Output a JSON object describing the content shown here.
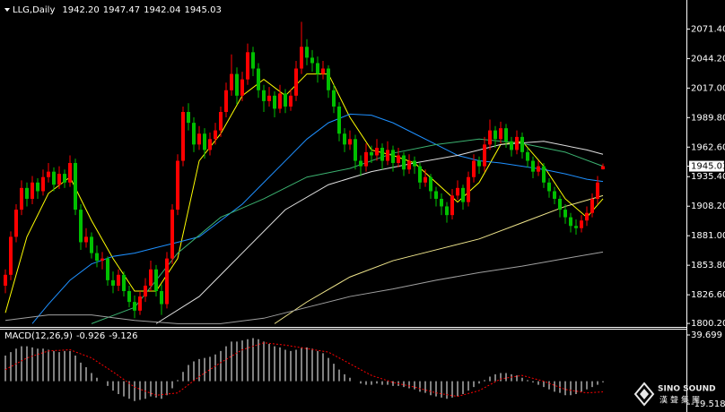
{
  "header": {
    "symbol": "LLG,Daily",
    "ohlc": [
      "1942.20",
      "1947.47",
      "1942.04",
      "1945.03"
    ]
  },
  "watermark": {
    "brand": "SINO SOUND",
    "chinese": "漢聲集團"
  },
  "chart_data": [
    {
      "type": "candlestick",
      "up_color": "#ff0000",
      "down_color": "#00c000",
      "ylim": [
        1797,
        2094
      ],
      "yticks": [
        {
          "value": 2071.4,
          "label": "2071.40"
        },
        {
          "value": 2044.2,
          "label": "2044.20"
        },
        {
          "value": 2017,
          "label": "2017.00"
        },
        {
          "value": 1989.8,
          "label": "1989.80"
        },
        {
          "value": 1962.6,
          "label": "1962.60"
        },
        {
          "value": 1935.4,
          "label": "1935.40"
        },
        {
          "value": 1908.2,
          "label": "1908.20"
        },
        {
          "value": 1881,
          "label": "1881.00"
        },
        {
          "value": 1853.8,
          "label": "1853.80"
        },
        {
          "value": 1826.6,
          "label": "1826.60"
        },
        {
          "value": 1800.2,
          "label": "1800.20"
        }
      ],
      "current_price": 1945.03,
      "candles": [
        [
          1835,
          1850,
          1828,
          1845
        ],
        [
          1845,
          1885,
          1840,
          1880
        ],
        [
          1880,
          1910,
          1875,
          1905
        ],
        [
          1905,
          1932,
          1900,
          1925
        ],
        [
          1925,
          1930,
          1908,
          1915
        ],
        [
          1915,
          1936,
          1910,
          1930
        ],
        [
          1930,
          1934,
          1915,
          1922
        ],
        [
          1922,
          1942,
          1918,
          1935
        ],
        [
          1935,
          1948,
          1930,
          1940
        ],
        [
          1940,
          1944,
          1922,
          1928
        ],
        [
          1928,
          1945,
          1924,
          1938
        ],
        [
          1938,
          1942,
          1925,
          1930
        ],
        [
          1930,
          1955,
          1926,
          1948
        ],
        [
          1948,
          1952,
          1900,
          1905
        ],
        [
          1905,
          1910,
          1868,
          1875
        ],
        [
          1875,
          1888,
          1870,
          1880
        ],
        [
          1880,
          1884,
          1860,
          1865
        ],
        [
          1865,
          1872,
          1852,
          1858
        ],
        [
          1858,
          1866,
          1850,
          1860
        ],
        [
          1860,
          1862,
          1835,
          1840
        ],
        [
          1840,
          1848,
          1828,
          1835
        ],
        [
          1835,
          1850,
          1830,
          1845
        ],
        [
          1845,
          1848,
          1825,
          1830
        ],
        [
          1830,
          1835,
          1815,
          1820
        ],
        [
          1820,
          1826,
          1805,
          1812
        ],
        [
          1812,
          1830,
          1808,
          1825
        ],
        [
          1825,
          1842,
          1820,
          1835
        ],
        [
          1835,
          1858,
          1830,
          1850
        ],
        [
          1850,
          1854,
          1825,
          1830
        ],
        [
          1830,
          1836,
          1808,
          1818
        ],
        [
          1818,
          1866,
          1814,
          1860
        ],
        [
          1860,
          1910,
          1855,
          1905
        ],
        [
          1905,
          1956,
          1900,
          1950
        ],
        [
          1950,
          2000,
          1945,
          1995
        ],
        [
          1995,
          2003,
          1978,
          1985
        ],
        [
          1985,
          1990,
          1958,
          1965
        ],
        [
          1965,
          1982,
          1960,
          1975
        ],
        [
          1975,
          1980,
          1952,
          1960
        ],
        [
          1960,
          1976,
          1955,
          1970
        ],
        [
          1970,
          1985,
          1965,
          1978
        ],
        [
          1978,
          2000,
          1972,
          1995
        ],
        [
          1995,
          2022,
          1990,
          2015
        ],
        [
          2015,
          2048,
          2010,
          2030
        ],
        [
          2030,
          2036,
          2002,
          2010
        ],
        [
          2010,
          2032,
          2005,
          2025
        ],
        [
          2025,
          2058,
          2020,
          2050
        ],
        [
          2050,
          2055,
          2028,
          2035
        ],
        [
          2035,
          2040,
          2008,
          2015
        ],
        [
          2015,
          2020,
          1995,
          2005
        ],
        [
          2005,
          2018,
          2000,
          2010
        ],
        [
          2010,
          2014,
          1990,
          1998
        ],
        [
          1998,
          2020,
          1994,
          2012
        ],
        [
          2012,
          2016,
          1994,
          2000
        ],
        [
          2000,
          2016,
          1996,
          2010
        ],
        [
          2010,
          2042,
          2005,
          2035
        ],
        [
          2035,
          2078,
          2030,
          2055
        ],
        [
          2055,
          2062,
          2038,
          2045
        ],
        [
          2045,
          2052,
          2032,
          2040
        ],
        [
          2040,
          2046,
          2022,
          2030
        ],
        [
          2030,
          2042,
          2025,
          2035
        ],
        [
          2035,
          2038,
          2008,
          2015
        ],
        [
          2015,
          2020,
          1994,
          2000
        ],
        [
          2000,
          2004,
          1968,
          1975
        ],
        [
          1975,
          1980,
          1958,
          1965
        ],
        [
          1965,
          1978,
          1960,
          1970
        ],
        [
          1970,
          1974,
          1942,
          1950
        ],
        [
          1950,
          1955,
          1936,
          1945
        ],
        [
          1945,
          1966,
          1940,
          1958
        ],
        [
          1958,
          1964,
          1948,
          1955
        ],
        [
          1955,
          1970,
          1950,
          1962
        ],
        [
          1962,
          1966,
          1942,
          1950
        ],
        [
          1950,
          1968,
          1946,
          1960
        ],
        [
          1960,
          1964,
          1940,
          1948
        ],
        [
          1948,
          1962,
          1944,
          1955
        ],
        [
          1955,
          1958,
          1936,
          1942
        ],
        [
          1942,
          1956,
          1938,
          1950
        ],
        [
          1950,
          1954,
          1938,
          1945
        ],
        [
          1945,
          1948,
          1924,
          1930
        ],
        [
          1930,
          1942,
          1926,
          1935
        ],
        [
          1935,
          1938,
          1915,
          1922
        ],
        [
          1922,
          1926,
          1908,
          1915
        ],
        [
          1915,
          1920,
          1900,
          1908
        ],
        [
          1908,
          1912,
          1893,
          1900
        ],
        [
          1900,
          1924,
          1896,
          1918
        ],
        [
          1918,
          1932,
          1914,
          1925
        ],
        [
          1925,
          1928,
          1905,
          1912
        ],
        [
          1912,
          1940,
          1908,
          1935
        ],
        [
          1935,
          1956,
          1930,
          1950
        ],
        [
          1950,
          1954,
          1938,
          1945
        ],
        [
          1945,
          1972,
          1940,
          1965
        ],
        [
          1965,
          1988,
          1960,
          1978
        ],
        [
          1978,
          1982,
          1962,
          1970
        ],
        [
          1970,
          1986,
          1966,
          1980
        ],
        [
          1980,
          1984,
          1962,
          1968
        ],
        [
          1968,
          1972,
          1954,
          1960
        ],
        [
          1960,
          1978,
          1956,
          1972
        ],
        [
          1972,
          1976,
          1952,
          1958
        ],
        [
          1958,
          1962,
          1944,
          1950
        ],
        [
          1950,
          1954,
          1934,
          1940
        ],
        [
          1940,
          1950,
          1936,
          1945
        ],
        [
          1945,
          1948,
          1925,
          1930
        ],
        [
          1930,
          1934,
          1916,
          1922
        ],
        [
          1922,
          1926,
          1910,
          1915
        ],
        [
          1915,
          1918,
          1898,
          1905
        ],
        [
          1905,
          1910,
          1892,
          1898
        ],
        [
          1898,
          1902,
          1884,
          1890
        ],
        [
          1890,
          1896,
          1882,
          1888
        ],
        [
          1888,
          1900,
          1884,
          1895
        ],
        [
          1895,
          1908,
          1890,
          1902
        ],
        [
          1902,
          1920,
          1898,
          1915
        ],
        [
          1915,
          1936,
          1910,
          1930
        ],
        [
          1942.2,
          1947.47,
          1942.04,
          1945.03
        ]
      ],
      "ma_lines": [
        {
          "color": "#ffff00",
          "x": [
            0,
            4,
            8,
            12,
            16,
            20,
            24,
            28,
            32,
            36,
            40,
            44,
            48,
            52,
            56,
            60,
            64,
            68,
            72,
            76,
            80,
            84,
            88,
            92,
            96,
            100,
            104,
            108,
            111
          ],
          "values": [
            1810,
            1880,
            1920,
            1935,
            1895,
            1860,
            1830,
            1830,
            1860,
            1950,
            1975,
            2010,
            2025,
            2010,
            2030,
            2030,
            1990,
            1960,
            1955,
            1948,
            1930,
            1912,
            1930,
            1965,
            1968,
            1945,
            1915,
            1898,
            1915
          ]
        },
        {
          "color": "#1e90ff",
          "x": [
            5,
            8,
            12,
            16,
            20,
            24,
            28,
            32,
            36,
            40,
            44,
            48,
            52,
            56,
            60,
            64,
            68,
            72,
            76,
            80,
            84,
            88,
            92,
            96,
            100,
            104,
            108,
            111
          ],
          "values": [
            1800,
            1818,
            1840,
            1855,
            1862,
            1865,
            1870,
            1875,
            1880,
            1895,
            1910,
            1930,
            1950,
            1970,
            1985,
            1993,
            1992,
            1985,
            1975,
            1965,
            1955,
            1950,
            1948,
            1945,
            1942,
            1938,
            1933,
            1931
          ]
        },
        {
          "color": "#3cb371",
          "x": [
            16,
            24,
            32,
            40,
            48,
            56,
            64,
            72,
            80,
            88,
            96,
            104,
            111
          ],
          "values": [
            1800,
            1815,
            1865,
            1898,
            1915,
            1935,
            1943,
            1957,
            1965,
            1970,
            1966,
            1958,
            1945
          ]
        },
        {
          "color": "#e0e0e0",
          "x": [
            28,
            36,
            44,
            52,
            60,
            68,
            76,
            84,
            92,
            100,
            108,
            111
          ],
          "values": [
            1800,
            1825,
            1865,
            1905,
            1928,
            1940,
            1948,
            1955,
            1965,
            1968,
            1960,
            1956
          ]
        },
        {
          "color": "#f0e68c",
          "x": [
            50,
            56,
            64,
            72,
            80,
            88,
            96,
            104,
            111
          ],
          "values": [
            1800,
            1820,
            1843,
            1858,
            1868,
            1878,
            1893,
            1908,
            1918
          ]
        },
        {
          "color": "#a0a0a0",
          "x": [
            0,
            8,
            16,
            24,
            32,
            40,
            48,
            56,
            64,
            72,
            80,
            88,
            96,
            104,
            111
          ],
          "values": [
            1803,
            1808,
            1808,
            1803,
            1800,
            1800,
            1805,
            1815,
            1825,
            1832,
            1840,
            1847,
            1853,
            1860,
            1866
          ]
        }
      ]
    },
    {
      "type": "macd",
      "label": "MACD(12,26,9)",
      "color": "#ffffff",
      "signal_color": "#ff0000",
      "ylim": [
        -23.3,
        44.3
      ],
      "yticks": [
        39.699,
        -19.518
      ],
      "histogram": [
        22,
        25,
        28,
        30,
        30,
        29,
        28,
        28,
        27,
        26,
        25,
        26,
        26,
        22,
        16,
        12,
        7,
        3,
        0,
        -4,
        -8,
        -11,
        -13,
        -15,
        -17,
        -16,
        -15,
        -13,
        -14,
        -15,
        -12,
        -6,
        1,
        8,
        14,
        17,
        19,
        20,
        21,
        23,
        26,
        30,
        34,
        34,
        35,
        36,
        37,
        36,
        34,
        32,
        30,
        29,
        27,
        26,
        27,
        29,
        29,
        28,
        26,
        24,
        20,
        15,
        10,
        6,
        3,
        0,
        -2,
        -3,
        -3,
        -2,
        -3,
        -3,
        -4,
        -4,
        -5,
        -6,
        -7,
        -9,
        -10,
        -12,
        -13,
        -14,
        -15,
        -14,
        -13,
        -11,
        -8,
        -5,
        -2,
        1,
        4,
        6,
        7,
        7,
        6,
        5,
        3,
        1,
        -1,
        -3,
        -5,
        -7,
        -9,
        -10,
        -12,
        -12,
        -11,
        -9,
        -7,
        -5,
        -3,
        -0.926
      ],
      "signal": {
        "x": [
          0,
          4,
          8,
          12,
          16,
          20,
          24,
          28,
          32,
          36,
          40,
          44,
          48,
          52,
          56,
          60,
          64,
          68,
          72,
          76,
          80,
          84,
          88,
          92,
          96,
          100,
          104,
          108,
          111
        ],
        "values": [
          10,
          20,
          26,
          27,
          20,
          8,
          -5,
          -12,
          -10,
          4,
          16,
          27,
          33,
          31,
          28,
          25,
          15,
          5,
          -1,
          -5,
          -10,
          -13,
          -8,
          2,
          5,
          0,
          -7,
          -10,
          -9.126
        ]
      }
    }
  ]
}
